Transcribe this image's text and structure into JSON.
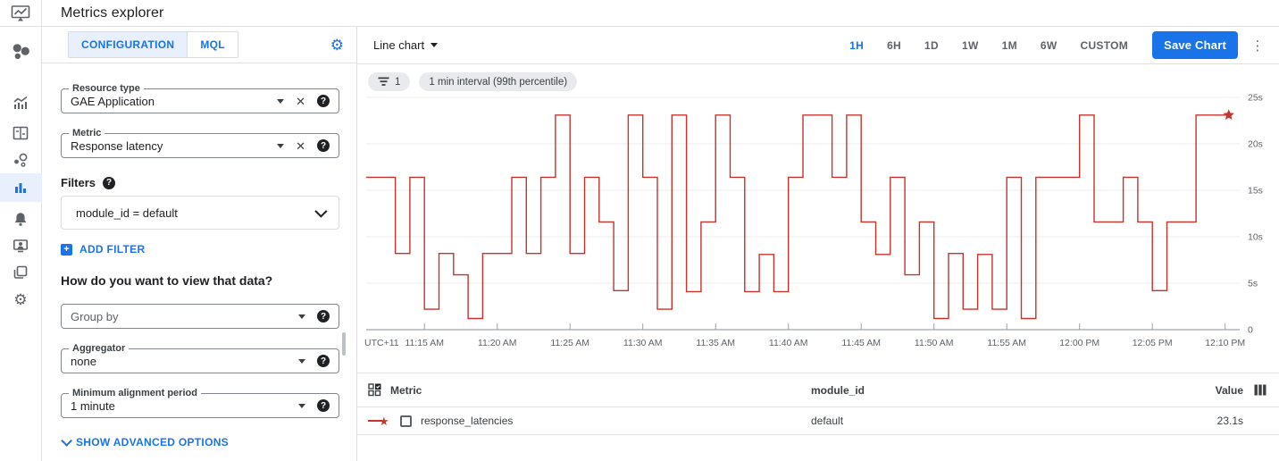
{
  "app": {
    "title": "Metrics explorer"
  },
  "sidebar": {
    "items": [
      {
        "name": "monitoring-overview"
      },
      {
        "name": "metrics"
      },
      {
        "name": "dashboards"
      },
      {
        "name": "services"
      },
      {
        "name": "metrics-explorer",
        "active": true
      },
      {
        "name": "alerting"
      },
      {
        "name": "uptime-checks"
      },
      {
        "name": "groups"
      },
      {
        "name": "settings"
      }
    ]
  },
  "config_panel": {
    "tabs": [
      {
        "label": "CONFIGURATION",
        "active": true
      },
      {
        "label": "MQL",
        "active": false
      }
    ],
    "resource_type": {
      "label": "Resource type",
      "value": "GAE Application"
    },
    "metric": {
      "label": "Metric",
      "value": "Response latency"
    },
    "filters": {
      "label": "Filters",
      "value": "module_id = default",
      "add_label": "ADD FILTER"
    },
    "view_heading": "How do you want to view that data?",
    "group_by": {
      "placeholder": "Group by"
    },
    "aggregator": {
      "label": "Aggregator",
      "value": "none"
    },
    "min_alignment_period": {
      "label": "Minimum alignment period",
      "value": "1 minute"
    },
    "advanced_options_label": "SHOW ADVANCED OPTIONS"
  },
  "toolbar": {
    "chart_type_label": "Line chart",
    "time_ranges": [
      "1H",
      "6H",
      "1D",
      "1W",
      "1M",
      "6W",
      "CUSTOM"
    ],
    "active_range": "1H",
    "save_label": "Save Chart"
  },
  "chips": [
    {
      "icon": "filter-icon",
      "label": "1"
    },
    {
      "label": "1 min interval (99th percentile)"
    }
  ],
  "chart_data": {
    "type": "line",
    "style": "stepped",
    "title": "",
    "xlabel": "",
    "ylabel": "",
    "ylim": [
      0,
      25
    ],
    "y_tick_values": [
      25,
      20,
      15,
      10,
      5,
      0
    ],
    "y_tick_labels": [
      "25s",
      "20s",
      "15s",
      "10s",
      "5s",
      "0"
    ],
    "x_tick_labels": [
      "UTC+11",
      "11:15 AM",
      "11:20 AM",
      "11:25 AM",
      "11:30 AM",
      "11:35 AM",
      "11:40 AM",
      "11:45 AM",
      "11:50 AM",
      "11:55 AM",
      "12:00 PM",
      "12:05 PM",
      "12:10 PM"
    ],
    "minutes_per_point": 1,
    "grid": true,
    "legend_position": "table-below",
    "end_marker": "star",
    "series": [
      {
        "name": "response_latencies",
        "color": "#c5332b",
        "unit": "seconds",
        "values_seconds": [
          16.4,
          16.4,
          8.2,
          16.4,
          2.2,
          8.2,
          5.9,
          1.2,
          8.2,
          8.2,
          16.4,
          8.2,
          16.4,
          23.1,
          8.2,
          16.4,
          11.6,
          4.2,
          23.1,
          16.4,
          2.2,
          23.1,
          4.1,
          11.6,
          23.1,
          16.4,
          4.1,
          8.1,
          4.1,
          16.4,
          23.1,
          23.1,
          16.4,
          23.1,
          11.6,
          8.1,
          16.4,
          5.9,
          11.6,
          1.2,
          8.2,
          2.2,
          8.1,
          2.2,
          16.4,
          1.2,
          16.4,
          16.4,
          16.4,
          23.1,
          11.6,
          11.6,
          16.4,
          11.6,
          4.2,
          11.6,
          11.6,
          23.1,
          23.1,
          23.1
        ]
      }
    ]
  },
  "table": {
    "headers": [
      "Metric",
      "module_id",
      "Value"
    ],
    "rows": [
      {
        "metric": "response_latencies",
        "module_id": "default",
        "value": "23.1s"
      }
    ]
  },
  "colors": {
    "accent_blue": "#1a73e8",
    "tab_active_bg": "#e8f0fe",
    "series_red": "#c5332b",
    "chip_bg": "#e8eaed",
    "border": "#e0e0e0",
    "text_dark": "#202124",
    "text_gray": "#5f6368"
  }
}
